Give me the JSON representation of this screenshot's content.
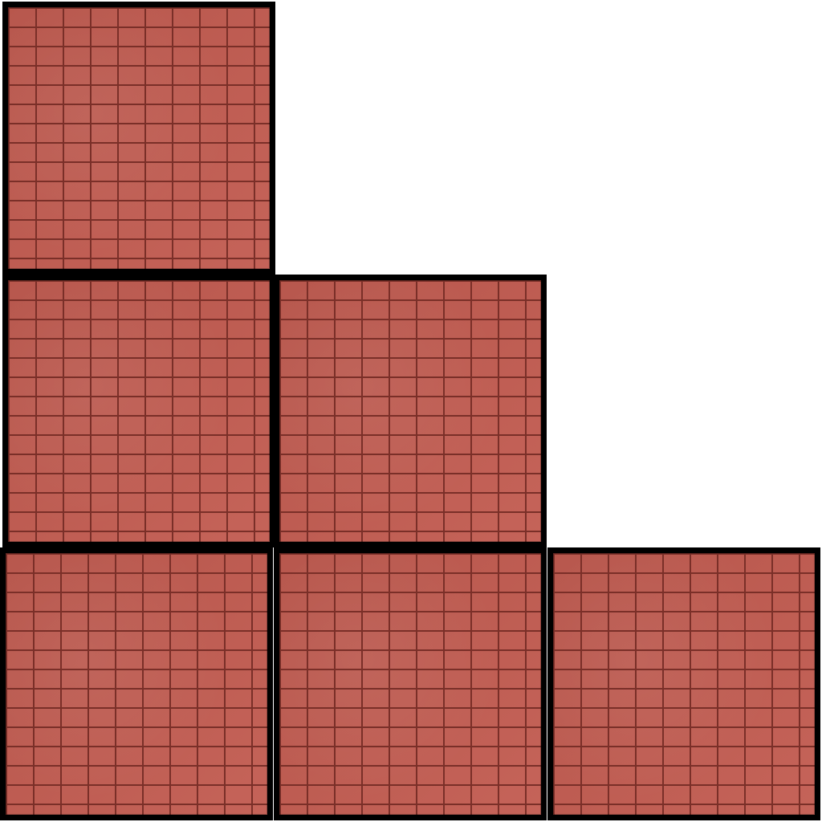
{
  "diagram": {
    "description_type": "staircase-of-blocks",
    "rows": [
      {
        "row": 1,
        "blocks": 1
      },
      {
        "row": 2,
        "blocks": 2
      },
      {
        "row": 3,
        "blocks": 3
      }
    ],
    "total_blocks": 6
  },
  "colors": {
    "background": "#ffffff",
    "brick": "#c25b50",
    "mortar": "#7a2f28",
    "outline": "#000000"
  }
}
